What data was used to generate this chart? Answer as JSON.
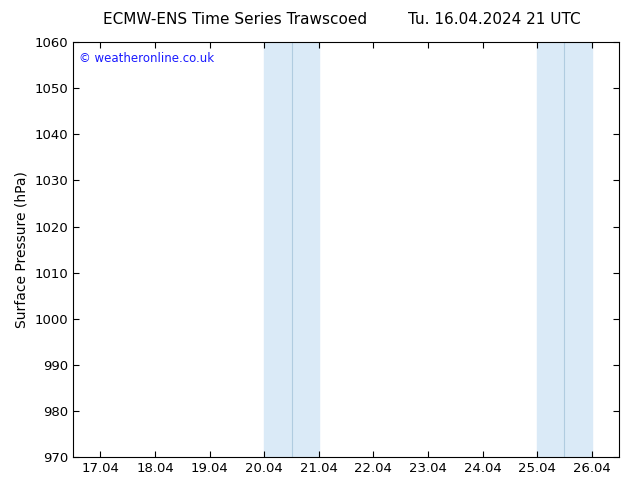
{
  "title_left": "ECMW-ENS Time Series Trawscoed",
  "title_right": "Tu. 16.04.2024 21 UTC",
  "ylabel": "Surface Pressure (hPa)",
  "ylim": [
    970,
    1060
  ],
  "yticks": [
    970,
    980,
    990,
    1000,
    1010,
    1020,
    1030,
    1040,
    1050,
    1060
  ],
  "x_labels": [
    "17.04",
    "18.04",
    "19.04",
    "20.04",
    "21.04",
    "22.04",
    "23.04",
    "24.04",
    "25.04",
    "26.04"
  ],
  "x_values": [
    0,
    1,
    2,
    3,
    4,
    5,
    6,
    7,
    8,
    9
  ],
  "xlim": [
    -0.5,
    9.5
  ],
  "shade_bands": [
    {
      "xmin": 3.0,
      "xmax": 4.0,
      "color": "#daeaf7"
    },
    {
      "xmin": 8.0,
      "xmax": 9.0,
      "color": "#daeaf7"
    }
  ],
  "shade_divider_color": "#b0cce0",
  "watermark": "© weatheronline.co.uk",
  "watermark_color": "#1a1aff",
  "background_color": "#ffffff",
  "plot_bg_color": "#ffffff",
  "title_fontsize": 11,
  "label_fontsize": 10,
  "tick_fontsize": 9.5
}
